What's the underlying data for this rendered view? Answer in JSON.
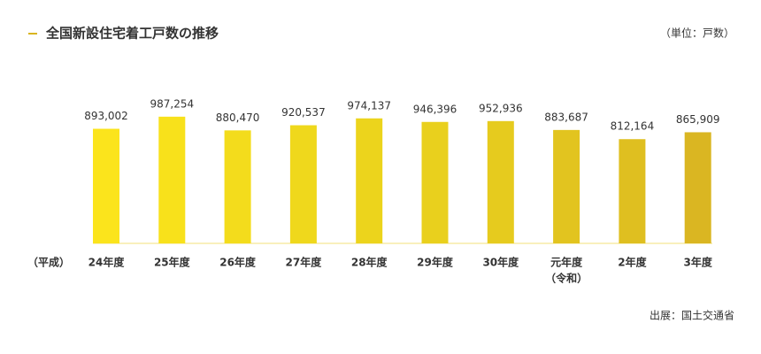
{
  "title": "全国新設住宅着工戸数の推移",
  "unit_note": "（単位：戸数）",
  "source": "出展：国土交通省",
  "chart_data": {
    "type": "bar",
    "era_labels": [
      "（平成）",
      "（令和）"
    ],
    "categories": [
      "24年度",
      "25年度",
      "26年度",
      "27年度",
      "28年度",
      "29年度",
      "30年度",
      "元年度",
      "2年度",
      "3年度"
    ],
    "values": [
      893002,
      987254,
      880470,
      920537,
      974137,
      946396,
      952936,
      883687,
      812164,
      865909
    ],
    "value_labels": [
      "893,002",
      "987,254",
      "880,470",
      "920,537",
      "974,137",
      "946,396",
      "952,936",
      "883,687",
      "812,164",
      "865,909"
    ],
    "colors": [
      "#fbe41c",
      "#f8e11b",
      "#f3dc1c",
      "#efd81c",
      "#ecd41c",
      "#e9d01d",
      "#e6cb1e",
      "#e2c41f",
      "#dfbf20",
      "#dab622"
    ],
    "ylim": [
      0,
      1000000
    ]
  }
}
